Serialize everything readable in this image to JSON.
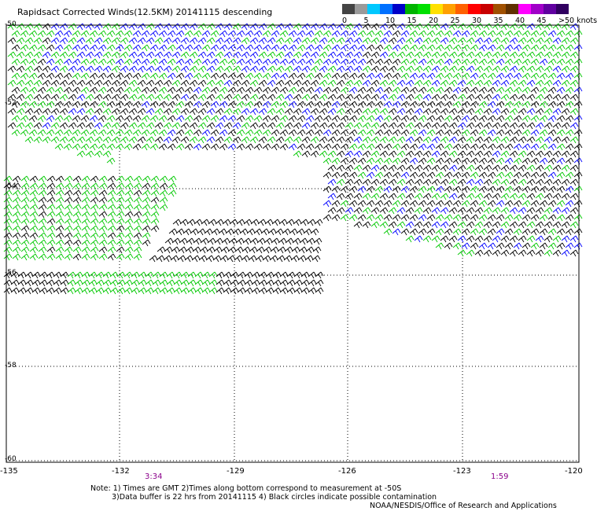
{
  "title": "Rapidsact Corrected Winds(12.5KM) 20141115 descending",
  "scale": {
    "swatches": [
      {
        "color": "#444444"
      },
      {
        "color": "#9a9a9a"
      },
      {
        "color": "#00c8ff"
      },
      {
        "color": "#0070ff"
      },
      {
        "color": "#0000c8"
      },
      {
        "color": "#00b400"
      },
      {
        "color": "#00e000"
      },
      {
        "color": "#ffe000"
      },
      {
        "color": "#ffa000"
      },
      {
        "color": "#ff6000"
      },
      {
        "color": "#ff0000"
      },
      {
        "color": "#c80000"
      },
      {
        "color": "#a05000"
      },
      {
        "color": "#603000"
      },
      {
        "color": "#ff00ff"
      },
      {
        "color": "#a000c8"
      },
      {
        "color": "#6000a0"
      },
      {
        "color": "#300060"
      }
    ],
    "labels": [
      "0",
      "5",
      "10",
      "15",
      "20",
      "25",
      "30",
      "35",
      "40",
      "45",
      ">50 knots"
    ]
  },
  "map": {
    "x_ticks": [
      "-135",
      "-132",
      "-129",
      "-126",
      "-123",
      "-120"
    ],
    "y_ticks": [
      "-50",
      "-52",
      "-54",
      "-56",
      "-58",
      "-60"
    ],
    "times": [
      "3:34",
      "1:59"
    ],
    "barb_colors": {
      "low": "#000000",
      "mid": "#00c800",
      "high": "#0000ff",
      "flag": "#ffe000"
    }
  },
  "notes": {
    "line1": "Note: 1) Times are GMT 2)Times along bottom correspond to measurement at -50S",
    "line2": "3)Data buffer is 22 hrs from 20141115 4) Black circles indicate possible contamination",
    "line3": "NOAA/NESDIS/Office of Research and Applications"
  }
}
